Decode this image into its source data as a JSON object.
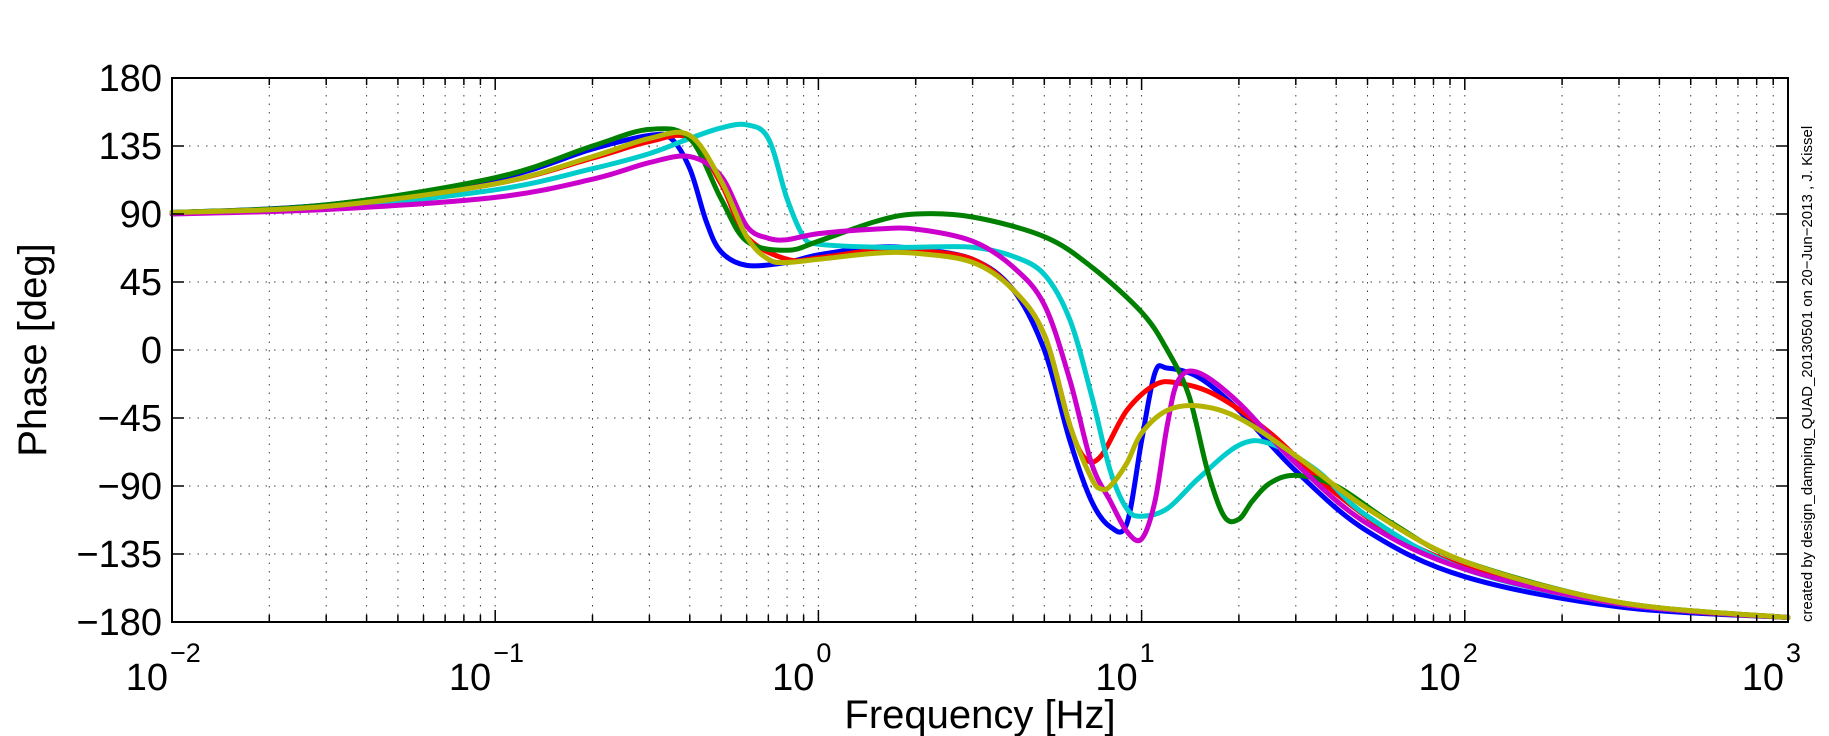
{
  "chart_data": {
    "type": "line",
    "title": "",
    "xlabel": "Frequency [Hz]",
    "ylabel": "Phase [deg]",
    "xscale": "log",
    "xlim": [
      0.01,
      1000
    ],
    "ylim": [
      -180,
      180
    ],
    "grid": "on (major and minor, dotted)",
    "legend": "none",
    "x_ticks": [
      0.01,
      0.1,
      1,
      10,
      100,
      1000
    ],
    "x_tick_labels": [
      {
        "base": "10",
        "exp": "−2"
      },
      {
        "base": "10",
        "exp": "−1"
      },
      {
        "base": "10",
        "exp": "0"
      },
      {
        "base": "10",
        "exp": "1"
      },
      {
        "base": "10",
        "exp": "2"
      },
      {
        "base": "10",
        "exp": "3"
      }
    ],
    "y_ticks": [
      180,
      135,
      90,
      45,
      0,
      -45,
      -90,
      -135,
      -180
    ],
    "y_tick_labels": [
      "180",
      "135",
      "90",
      "45",
      "0",
      "−45",
      "−90",
      "−135",
      "−180"
    ],
    "annotation": "created by design_damping_QUAD_20130501 on 20−Jun−2013 , J. Kissel",
    "series": [
      {
        "color": "#0000ff",
        "points": [
          [
            0.01,
            91
          ],
          [
            0.03,
            96
          ],
          [
            0.1,
            113
          ],
          [
            0.2,
            133
          ],
          [
            0.3,
            142
          ],
          [
            0.35,
            140
          ],
          [
            0.4,
            120
          ],
          [
            0.45,
            85
          ],
          [
            0.5,
            65
          ],
          [
            0.6,
            56
          ],
          [
            0.8,
            58
          ],
          [
            1,
            63
          ],
          [
            1.5,
            68
          ],
          [
            2,
            67
          ],
          [
            3,
            60
          ],
          [
            4,
            40
          ],
          [
            5,
            0
          ],
          [
            6,
            -60
          ],
          [
            7,
            -100
          ],
          [
            8,
            -117
          ],
          [
            9,
            -115
          ],
          [
            10,
            -60
          ],
          [
            11,
            -15
          ],
          [
            12,
            -12
          ],
          [
            15,
            -18
          ],
          [
            20,
            -40
          ],
          [
            30,
            -80
          ],
          [
            50,
            -120
          ],
          [
            100,
            -150
          ],
          [
            300,
            -170
          ],
          [
            1000,
            -177
          ]
        ]
      },
      {
        "color": "#ff0000",
        "points": [
          [
            0.01,
            91
          ],
          [
            0.03,
            95
          ],
          [
            0.1,
            110
          ],
          [
            0.2,
            127
          ],
          [
            0.3,
            138
          ],
          [
            0.4,
            140
          ],
          [
            0.5,
            110
          ],
          [
            0.6,
            75
          ],
          [
            0.8,
            60
          ],
          [
            1,
            61
          ],
          [
            1.5,
            66
          ],
          [
            2,
            66
          ],
          [
            3,
            60
          ],
          [
            4,
            40
          ],
          [
            5,
            10
          ],
          [
            6,
            -50
          ],
          [
            6.7,
            -72
          ],
          [
            7.5,
            -70
          ],
          [
            9,
            -40
          ],
          [
            11,
            -23
          ],
          [
            13,
            -22
          ],
          [
            17,
            -30
          ],
          [
            25,
            -55
          ],
          [
            40,
            -95
          ],
          [
            70,
            -130
          ],
          [
            150,
            -155
          ],
          [
            400,
            -171
          ],
          [
            1000,
            -177
          ]
        ]
      },
      {
        "color": "#00cccc",
        "points": [
          [
            0.01,
            91
          ],
          [
            0.03,
            94
          ],
          [
            0.1,
            106
          ],
          [
            0.2,
            120
          ],
          [
            0.3,
            130
          ],
          [
            0.4,
            140
          ],
          [
            0.5,
            147
          ],
          [
            0.6,
            149
          ],
          [
            0.7,
            140
          ],
          [
            0.8,
            100
          ],
          [
            0.9,
            75
          ],
          [
            1,
            70
          ],
          [
            1.5,
            68
          ],
          [
            2,
            68
          ],
          [
            3,
            68
          ],
          [
            4,
            62
          ],
          [
            5,
            50
          ],
          [
            6,
            20
          ],
          [
            7,
            -30
          ],
          [
            8,
            -80
          ],
          [
            9,
            -105
          ],
          [
            10,
            -110
          ],
          [
            12,
            -105
          ],
          [
            15,
            -85
          ],
          [
            20,
            -63
          ],
          [
            25,
            -62
          ],
          [
            35,
            -80
          ],
          [
            50,
            -110
          ],
          [
            100,
            -145
          ],
          [
            300,
            -168
          ],
          [
            1000,
            -177
          ]
        ]
      },
      {
        "color": "#008000",
        "points": [
          [
            0.01,
            91
          ],
          [
            0.03,
            96
          ],
          [
            0.1,
            114
          ],
          [
            0.2,
            135
          ],
          [
            0.3,
            146
          ],
          [
            0.4,
            140
          ],
          [
            0.5,
            100
          ],
          [
            0.6,
            72
          ],
          [
            0.8,
            66
          ],
          [
            1,
            72
          ],
          [
            1.5,
            85
          ],
          [
            2,
            90
          ],
          [
            3,
            88
          ],
          [
            5,
            75
          ],
          [
            7,
            55
          ],
          [
            10,
            25
          ],
          [
            12,
            0
          ],
          [
            14,
            -30
          ],
          [
            16,
            -80
          ],
          [
            18,
            -110
          ],
          [
            20,
            -112
          ],
          [
            22,
            -100
          ],
          [
            25,
            -88
          ],
          [
            30,
            -83
          ],
          [
            40,
            -90
          ],
          [
            60,
            -115
          ],
          [
            100,
            -140
          ],
          [
            300,
            -167
          ],
          [
            1000,
            -177
          ]
        ]
      },
      {
        "color": "#cc00cc",
        "points": [
          [
            0.01,
            90
          ],
          [
            0.03,
            93
          ],
          [
            0.1,
            101
          ],
          [
            0.2,
            113
          ],
          [
            0.3,
            124
          ],
          [
            0.4,
            128
          ],
          [
            0.5,
            115
          ],
          [
            0.6,
            82
          ],
          [
            0.7,
            74
          ],
          [
            0.8,
            73
          ],
          [
            1,
            77
          ],
          [
            1.5,
            80
          ],
          [
            2,
            80
          ],
          [
            3,
            72
          ],
          [
            4,
            55
          ],
          [
            5,
            30
          ],
          [
            6,
            -20
          ],
          [
            7,
            -75
          ],
          [
            8,
            -100
          ],
          [
            9,
            -120
          ],
          [
            10,
            -125
          ],
          [
            11,
            -100
          ],
          [
            12,
            -50
          ],
          [
            13,
            -20
          ],
          [
            15,
            -15
          ],
          [
            20,
            -35
          ],
          [
            30,
            -75
          ],
          [
            50,
            -115
          ],
          [
            100,
            -145
          ],
          [
            300,
            -168
          ],
          [
            1000,
            -177
          ]
        ]
      },
      {
        "color": "#b3b300",
        "points": [
          [
            0.01,
            91
          ],
          [
            0.03,
            95
          ],
          [
            0.1,
            110
          ],
          [
            0.2,
            128
          ],
          [
            0.3,
            140
          ],
          [
            0.4,
            142
          ],
          [
            0.5,
            112
          ],
          [
            0.6,
            75
          ],
          [
            0.7,
            60
          ],
          [
            0.8,
            58
          ],
          [
            1,
            60
          ],
          [
            1.5,
            64
          ],
          [
            2,
            64
          ],
          [
            3,
            58
          ],
          [
            4,
            40
          ],
          [
            5,
            10
          ],
          [
            6,
            -50
          ],
          [
            7,
            -85
          ],
          [
            7.5,
            -92
          ],
          [
            8,
            -90
          ],
          [
            9,
            -75
          ],
          [
            10,
            -55
          ],
          [
            12,
            -40
          ],
          [
            15,
            -37
          ],
          [
            20,
            -45
          ],
          [
            30,
            -70
          ],
          [
            50,
            -105
          ],
          [
            100,
            -140
          ],
          [
            300,
            -167
          ],
          [
            1000,
            -177
          ]
        ]
      }
    ]
  }
}
